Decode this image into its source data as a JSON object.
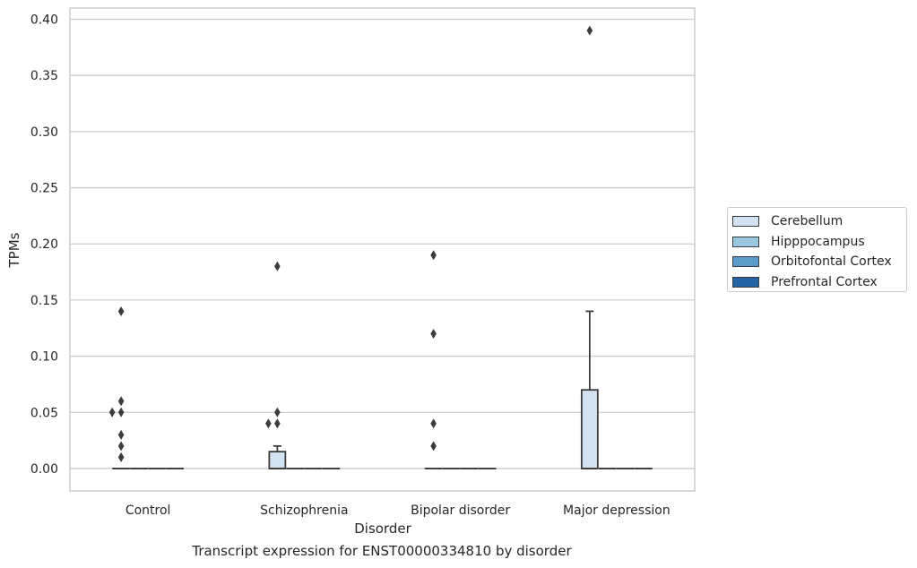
{
  "chart_data": {
    "type": "box",
    "xlabel": "Disorder",
    "ylabel": "TPMs",
    "caption": "Transcript expression for ENST00000334810 by disorder",
    "categories": [
      "Control",
      "Schizophrenia",
      "Bipolar disorder",
      "Major depression"
    ],
    "ylim": [
      -0.02,
      0.41
    ],
    "yticks": [
      "0.00",
      "0.05",
      "0.10",
      "0.15",
      "0.20",
      "0.25",
      "0.30",
      "0.35",
      "0.40"
    ],
    "ytick_values": [
      0.0,
      0.05,
      0.1,
      0.15,
      0.2,
      0.25,
      0.3,
      0.35,
      0.4
    ],
    "grid": true,
    "legend_position": "right",
    "series": [
      {
        "name": "Cerebellum",
        "color": "#d3e2f1",
        "boxes": [
          {
            "q1": 0.0,
            "median": 0.0,
            "q3": 0.0,
            "whisker_low": 0.0,
            "whisker_high": 0.0,
            "outliers": [
              0.14,
              0.06,
              0.05,
              0.05,
              0.03,
              0.02,
              0.01
            ]
          },
          {
            "q1": 0.0,
            "median": 0.0,
            "q3": 0.015,
            "whisker_low": 0.0,
            "whisker_high": 0.02,
            "outliers": [
              0.18,
              0.05,
              0.04,
              0.04
            ]
          },
          {
            "q1": 0.0,
            "median": 0.0,
            "q3": 0.0,
            "whisker_low": 0.0,
            "whisker_high": 0.0,
            "outliers": [
              0.19,
              0.12,
              0.04,
              0.02
            ]
          },
          {
            "q1": 0.0,
            "median": 0.0,
            "q3": 0.07,
            "whisker_low": 0.0,
            "whisker_high": 0.14,
            "outliers": [
              0.39
            ]
          }
        ]
      },
      {
        "name": "Hipppocampus",
        "color": "#9ac8e0",
        "boxes": [
          {
            "q1": 0,
            "median": 0,
            "q3": 0,
            "whisker_low": 0,
            "whisker_high": 0,
            "outliers": []
          },
          {
            "q1": 0,
            "median": 0,
            "q3": 0,
            "whisker_low": 0,
            "whisker_high": 0,
            "outliers": []
          },
          {
            "q1": 0,
            "median": 0,
            "q3": 0,
            "whisker_low": 0,
            "whisker_high": 0,
            "outliers": []
          },
          {
            "q1": 0,
            "median": 0,
            "q3": 0,
            "whisker_low": 0,
            "whisker_high": 0,
            "outliers": []
          }
        ]
      },
      {
        "name": "Orbitofontal Cortex",
        "color": "#5a9bc9",
        "boxes": [
          {
            "q1": 0,
            "median": 0,
            "q3": 0,
            "whisker_low": 0,
            "whisker_high": 0,
            "outliers": []
          },
          {
            "q1": 0,
            "median": 0,
            "q3": 0,
            "whisker_low": 0,
            "whisker_high": 0,
            "outliers": []
          },
          {
            "q1": 0,
            "median": 0,
            "q3": 0,
            "whisker_low": 0,
            "whisker_high": 0,
            "outliers": []
          },
          {
            "q1": 0,
            "median": 0,
            "q3": 0,
            "whisker_low": 0,
            "whisker_high": 0,
            "outliers": []
          }
        ]
      },
      {
        "name": "Prefrontal Cortex",
        "color": "#2465a6",
        "boxes": [
          {
            "q1": 0,
            "median": 0,
            "q3": 0,
            "whisker_low": 0,
            "whisker_high": 0,
            "outliers": []
          },
          {
            "q1": 0,
            "median": 0,
            "q3": 0,
            "whisker_low": 0,
            "whisker_high": 0,
            "outliers": []
          },
          {
            "q1": 0,
            "median": 0,
            "q3": 0,
            "whisker_low": 0,
            "whisker_high": 0,
            "outliers": []
          },
          {
            "q1": 0,
            "median": 0,
            "q3": 0,
            "whisker_low": 0,
            "whisker_high": 0,
            "outliers": []
          }
        ]
      }
    ]
  }
}
